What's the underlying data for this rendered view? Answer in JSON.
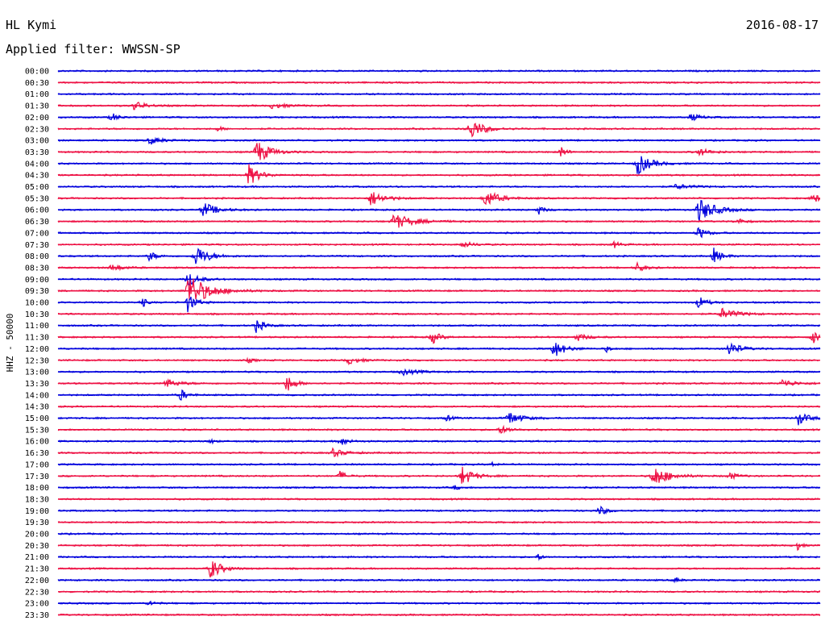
{
  "header": {
    "station": "HL Kymi",
    "date": "2016-08-17",
    "filter": "Applied filter: WWSSN-SP"
  },
  "chart_data": {
    "type": "line",
    "title": "HL Kymi",
    "ylabel": "HHZ - 50000",
    "colors": [
      "#0000dd",
      "#ee1144"
    ],
    "rows": [
      {
        "label": "00:00",
        "events": []
      },
      {
        "label": "00:30",
        "events": []
      },
      {
        "label": "01:00",
        "events": []
      },
      {
        "label": "01:30",
        "events": [
          [
            0.1,
            6,
            0.8
          ],
          [
            0.28,
            3,
            1.2
          ]
        ]
      },
      {
        "label": "02:00",
        "events": [
          [
            0.07,
            6,
            0.5
          ],
          [
            0.83,
            5,
            0.7
          ]
        ]
      },
      {
        "label": "02:30",
        "events": [
          [
            0.21,
            3,
            0.4
          ],
          [
            0.54,
            14,
            1.0
          ]
        ]
      },
      {
        "label": "03:00",
        "events": [
          [
            0.12,
            5,
            0.9
          ]
        ]
      },
      {
        "label": "03:30",
        "events": [
          [
            0.26,
            16,
            1.0
          ],
          [
            0.66,
            8,
            0.4
          ],
          [
            0.84,
            5,
            0.9
          ]
        ]
      },
      {
        "label": "04:00",
        "events": [
          [
            0.76,
            14,
            1.0
          ]
        ]
      },
      {
        "label": "04:30",
        "events": [
          [
            0.25,
            14,
            0.8
          ]
        ]
      },
      {
        "label": "05:00",
        "events": [
          [
            0.81,
            3,
            1.2
          ]
        ]
      },
      {
        "label": "05:30",
        "events": [
          [
            0.41,
            10,
            1.0
          ],
          [
            0.56,
            12,
            1.0
          ],
          [
            0.99,
            6,
            0.6
          ]
        ]
      },
      {
        "label": "06:00",
        "events": [
          [
            0.19,
            10,
            1.0
          ],
          [
            0.63,
            6,
            0.4
          ],
          [
            0.84,
            16,
            1.2
          ]
        ]
      },
      {
        "label": "06:30",
        "events": [
          [
            0.44,
            10,
            1.5
          ],
          [
            0.89,
            4,
            0.6
          ]
        ]
      },
      {
        "label": "07:00",
        "events": [
          [
            0.84,
            8,
            0.6
          ]
        ]
      },
      {
        "label": "07:30",
        "events": [
          [
            0.53,
            4,
            0.8
          ],
          [
            0.73,
            4,
            0.5
          ]
        ]
      },
      {
        "label": "08:00",
        "events": [
          [
            0.12,
            7,
            0.5
          ],
          [
            0.18,
            14,
            1.0
          ],
          [
            0.86,
            10,
            0.6
          ]
        ]
      },
      {
        "label": "08:30",
        "events": [
          [
            0.07,
            5,
            0.8
          ],
          [
            0.76,
            6,
            0.6
          ]
        ]
      },
      {
        "label": "09:00",
        "events": [
          [
            0.17,
            10,
            0.8
          ]
        ]
      },
      {
        "label": "09:30",
        "events": [
          [
            0.17,
            22,
            1.6
          ]
        ]
      },
      {
        "label": "10:00",
        "events": [
          [
            0.11,
            8,
            0.3
          ],
          [
            0.17,
            12,
            0.6
          ],
          [
            0.84,
            8,
            0.6
          ]
        ]
      },
      {
        "label": "10:30",
        "events": [
          [
            0.87,
            7,
            1.2
          ]
        ]
      },
      {
        "label": "11:00",
        "events": [
          [
            0.26,
            9,
            0.6
          ]
        ]
      },
      {
        "label": "11:30",
        "events": [
          [
            0.49,
            9,
            0.6
          ],
          [
            0.68,
            5,
            0.8
          ],
          [
            0.99,
            9,
            0.5
          ]
        ]
      },
      {
        "label": "12:00",
        "events": [
          [
            0.65,
            12,
            0.8
          ],
          [
            0.88,
            10,
            0.8
          ],
          [
            0.72,
            4,
            0.3
          ]
        ]
      },
      {
        "label": "12:30",
        "events": [
          [
            0.38,
            5,
            0.8
          ],
          [
            0.25,
            3,
            0.4
          ]
        ]
      },
      {
        "label": "13:00",
        "events": [
          [
            0.45,
            4,
            1.2
          ]
        ]
      },
      {
        "label": "13:30",
        "events": [
          [
            0.14,
            6,
            1.0
          ],
          [
            0.3,
            12,
            0.6
          ],
          [
            0.95,
            5,
            1.0
          ]
        ]
      },
      {
        "label": "14:00",
        "events": [
          [
            0.16,
            8,
            0.5
          ]
        ]
      },
      {
        "label": "14:30",
        "events": []
      },
      {
        "label": "15:00",
        "events": [
          [
            0.59,
            9,
            1.0
          ],
          [
            0.97,
            9,
            0.8
          ],
          [
            0.51,
            4,
            0.4
          ]
        ]
      },
      {
        "label": "15:30",
        "events": [
          [
            0.58,
            5,
            0.8
          ]
        ]
      },
      {
        "label": "16:00",
        "events": [
          [
            0.37,
            6,
            0.6
          ],
          [
            0.2,
            3,
            0.3
          ]
        ]
      },
      {
        "label": "16:30",
        "events": [
          [
            0.36,
            5,
            1.0
          ]
        ]
      },
      {
        "label": "17:00",
        "events": [
          [
            0.57,
            3,
            0.3
          ]
        ]
      },
      {
        "label": "17:30",
        "events": [
          [
            0.53,
            13,
            0.8
          ],
          [
            0.78,
            14,
            1.2
          ],
          [
            0.37,
            6,
            0.5
          ],
          [
            0.88,
            5,
            0.6
          ]
        ]
      },
      {
        "label": "18:00",
        "events": [
          [
            0.52,
            3,
            0.4
          ]
        ]
      },
      {
        "label": "18:30",
        "events": []
      },
      {
        "label": "19:00",
        "events": [
          [
            0.71,
            6,
            0.6
          ]
        ]
      },
      {
        "label": "19:30",
        "events": []
      },
      {
        "label": "20:00",
        "events": []
      },
      {
        "label": "20:30",
        "events": [
          [
            0.97,
            6,
            0.3
          ]
        ]
      },
      {
        "label": "21:00",
        "events": [
          [
            0.63,
            4,
            0.3
          ]
        ]
      },
      {
        "label": "21:30",
        "events": [
          [
            0.2,
            14,
            0.8
          ]
        ]
      },
      {
        "label": "22:00",
        "events": [
          [
            0.81,
            4,
            0.3
          ]
        ]
      },
      {
        "label": "22:30",
        "events": []
      },
      {
        "label": "23:00",
        "events": [
          [
            0.12,
            4,
            0.4
          ]
        ]
      },
      {
        "label": "23:30",
        "events": []
      }
    ]
  }
}
